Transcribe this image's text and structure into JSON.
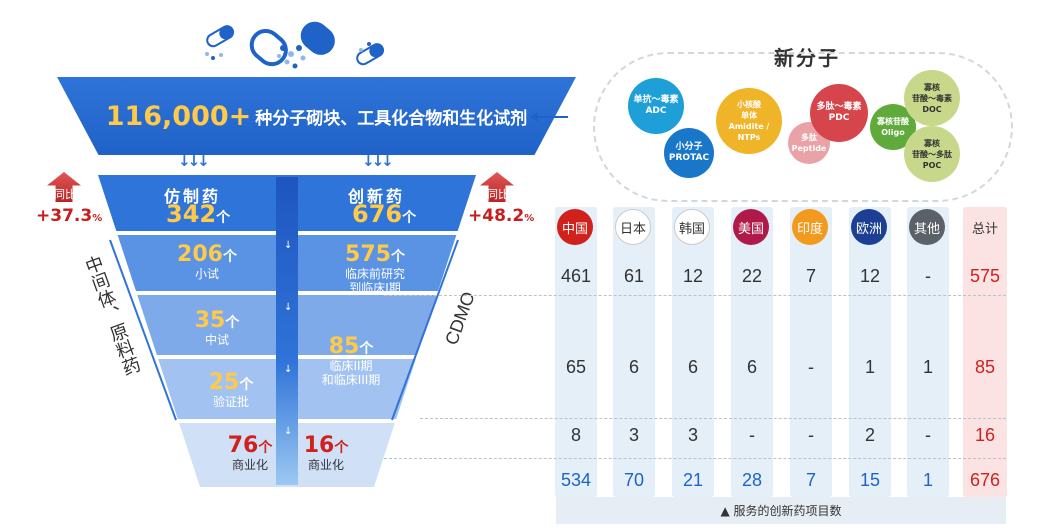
{
  "banner": {
    "number": "116,000+",
    "label": "种分子砌块、工具化合物和生化试剂"
  },
  "funnel": {
    "generic_title": "仿制药",
    "generic_total": "342",
    "generic_unit": "个",
    "innovative_title": "创新药",
    "innovative_total": "676",
    "innovative_unit": "个",
    "stages": [
      {
        "left_num": "206",
        "left_label": "小试",
        "right_num": "575",
        "right_label": "临床前研究\n到临床I期"
      },
      {
        "left_num": "35",
        "left_label": "中试",
        "right_num": "85",
        "right_label": "临床II期\n和临床III期"
      },
      {
        "left_num": "25",
        "left_label": "验证批"
      },
      {
        "left_num": "76",
        "left_label": "商业化",
        "right_num": "16",
        "right_label": "商业化"
      }
    ],
    "unit": "个",
    "left_side": "中间体、原料药",
    "right_side": "CDMO"
  },
  "yoy": {
    "left": {
      "label": "同比",
      "value": "+37.3",
      "pct": "%"
    },
    "right": {
      "label": "同比",
      "value": "+48.2",
      "pct": "%"
    }
  },
  "new_molecules": {
    "title": "新分子",
    "bubbles": [
      {
        "line1": "单抗～毒素",
        "line2": "ADC",
        "color": "#1e9fd8"
      },
      {
        "line1": "小分子",
        "line2": "PROTAC",
        "color": "#1877c9"
      },
      {
        "line1": "小核酸",
        "line2": "单体",
        "line3": "Amidite / NTPs",
        "color": "#f0b429"
      },
      {
        "line1": "多肽",
        "line2": "Peptide",
        "color": "#e9a2a6"
      },
      {
        "line1": "多肽～毒素",
        "line2": "PDC",
        "color": "#d7454c"
      },
      {
        "line1": "寡核苷酸",
        "line2": "Oligo",
        "color": "#5faa3b"
      },
      {
        "line1": "寡核",
        "line2": "苷酸～毒素",
        "line3": "DOC",
        "color": "#c8d88a"
      },
      {
        "line1": "寡核",
        "line2": "苷酸～多肽",
        "line3": "POC",
        "color": "#c8d88a"
      }
    ]
  },
  "table": {
    "headers": [
      {
        "label": "中国",
        "color": "#d0211c"
      },
      {
        "label": "日本",
        "color": "#ffffff"
      },
      {
        "label": "韩国",
        "color": "#ffffff"
      },
      {
        "label": "美国",
        "color": "#b01a4a"
      },
      {
        "label": "印度",
        "color": "#f29a1e"
      },
      {
        "label": "欧洲",
        "color": "#1c3f94"
      },
      {
        "label": "其他",
        "color": "#5b6168"
      },
      {
        "label": "总计",
        "color": ""
      }
    ],
    "rows": [
      [
        "461",
        "61",
        "12",
        "22",
        "7",
        "12",
        "-",
        "575"
      ],
      [
        "65",
        "6",
        "6",
        "6",
        "-",
        "1",
        "1",
        "85"
      ],
      [
        "8",
        "3",
        "3",
        "-",
        "-",
        "2",
        "-",
        "16"
      ],
      [
        "534",
        "70",
        "21",
        "28",
        "7",
        "15",
        "1",
        "676"
      ]
    ],
    "footer": "▲ 服务的创新药项目数"
  }
}
